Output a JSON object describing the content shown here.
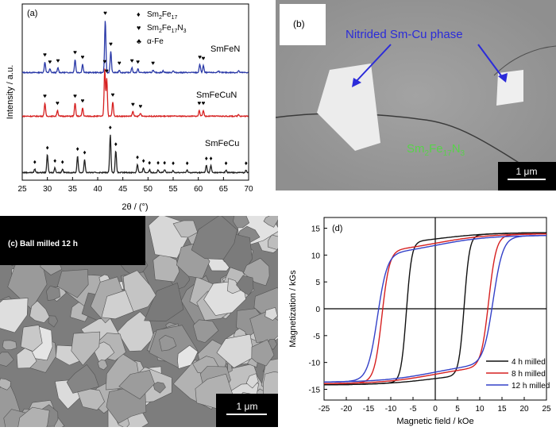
{
  "figure": {
    "panel_a": {
      "label": "(a)",
      "ylabel": "Intensity / a.u.",
      "xlabel": "2θ / (°)",
      "xticks": [
        "25",
        "30",
        "35",
        "40",
        "45",
        "50",
        "55",
        "60",
        "65",
        "70"
      ],
      "legend": [
        {
          "symbol": "♦",
          "text_main": "Sm",
          "sub1": "2",
          "text_mid": "Fe",
          "sub2": "17",
          "tail": ""
        },
        {
          "symbol": "♥",
          "text_main": "Sm",
          "sub1": "2",
          "text_mid": "Fe",
          "sub2": "17",
          "tail": "N",
          "sub3": "3"
        },
        {
          "symbol": "♣",
          "text": "α-Fe"
        }
      ],
      "series_labels": [
        "SmFeN",
        "SmFeCuN",
        "SmFeCu"
      ],
      "colors": {
        "SmFeN": "#2b3aa8",
        "SmFeCuN": "#d62020",
        "SmFeCu": "#222222"
      }
    },
    "panel_b": {
      "label": "(b)",
      "annotation": "Nitrided Sm-Cu phase",
      "phase_label_main": "Sm",
      "phase_sub1": "2",
      "phase_mid": "Fe",
      "phase_sub2": "17",
      "phase_tail": "N",
      "phase_sub3": "3",
      "scale": "1 μm"
    },
    "panel_c": {
      "label": "(c) Ball milled 12 h",
      "scale": "1 μm"
    },
    "panel_d": {
      "label": "(d)",
      "ylabel": "Magnetization / kGs",
      "xlabel": "Magnetic field / kOe",
      "legend": [
        "4 h milled",
        "8 h milled",
        "12 h milled"
      ]
    }
  },
  "chart_data": [
    {
      "type": "line",
      "panel": "(a)",
      "xlabel": "2θ / (°)",
      "ylabel": "Intensity / a.u.",
      "xlim": [
        25,
        70
      ],
      "series": [
        {
          "name": "SmFeN",
          "color": "#2b3aa8",
          "peaks": [
            [
              29.5,
              0.45
            ],
            [
              30.5,
              0.15
            ],
            [
              32.1,
              0.2
            ],
            [
              35.5,
              0.55
            ],
            [
              37.0,
              0.35
            ],
            [
              41.5,
              2.2
            ],
            [
              42.6,
              0.9
            ],
            [
              44.3,
              0.1
            ],
            [
              46.8,
              0.2
            ],
            [
              48.0,
              0.15
            ],
            [
              51.0,
              0.1
            ],
            [
              53.0,
              0.08
            ],
            [
              55.0,
              0.08
            ],
            [
              60.3,
              0.35
            ],
            [
              61.0,
              0.3
            ],
            [
              64.0,
              0.08
            ],
            [
              68.0,
              0.08
            ]
          ]
        },
        {
          "name": "SmFeCuN",
          "color": "#d62020",
          "peaks": [
            [
              29.5,
              0.55
            ],
            [
              32.0,
              0.25
            ],
            [
              35.5,
              0.55
            ],
            [
              37.0,
              0.35
            ],
            [
              41.4,
              2.0
            ],
            [
              41.8,
              1.6
            ],
            [
              43.0,
              0.6
            ],
            [
              47.0,
              0.2
            ],
            [
              48.5,
              0.12
            ],
            [
              60.2,
              0.25
            ],
            [
              61.0,
              0.25
            ],
            [
              68.0,
              0.08
            ]
          ]
        },
        {
          "name": "SmFeCu",
          "color": "#222222",
          "peaks": [
            [
              27.5,
              0.15
            ],
            [
              30.0,
              0.75
            ],
            [
              31.5,
              0.2
            ],
            [
              33.0,
              0.15
            ],
            [
              36.0,
              0.7
            ],
            [
              37.4,
              0.55
            ],
            [
              42.5,
              1.6
            ],
            [
              43.6,
              0.9
            ],
            [
              47.9,
              0.35
            ],
            [
              49.1,
              0.2
            ],
            [
              50.3,
              0.12
            ],
            [
              52.0,
              0.12
            ],
            [
              53.3,
              0.12
            ],
            [
              55.0,
              0.1
            ],
            [
              57.8,
              0.1
            ],
            [
              61.6,
              0.3
            ],
            [
              62.5,
              0.3
            ],
            [
              65.5,
              0.1
            ],
            [
              69.5,
              0.1
            ]
          ]
        }
      ]
    },
    {
      "type": "line",
      "panel": "(d)",
      "xlabel": "Magnetic field / kOe",
      "ylabel": "Magnetization / kGs",
      "xlim": [
        -25,
        25
      ],
      "ylim": [
        -17,
        17
      ],
      "xticks": [
        -25,
        -20,
        -15,
        -10,
        -5,
        0,
        5,
        10,
        15,
        20,
        25
      ],
      "yticks": [
        -15,
        -10,
        -5,
        0,
        5,
        10,
        15
      ],
      "series": [
        {
          "name": "4 h milled",
          "color": "#111111",
          "Ms": 14.2,
          "Hc": 6.5,
          "Mr": 13.0,
          "width": 1.2
        },
        {
          "name": "8 h milled",
          "color": "#d62020",
          "Ms": 14.0,
          "Hc": 12.0,
          "Mr": 12.2,
          "width": 1.7
        },
        {
          "name": "12 h milled",
          "color": "#3340c8",
          "Ms": 13.7,
          "Hc": 13.0,
          "Mr": 11.8,
          "width": 2.2
        }
      ]
    }
  ]
}
